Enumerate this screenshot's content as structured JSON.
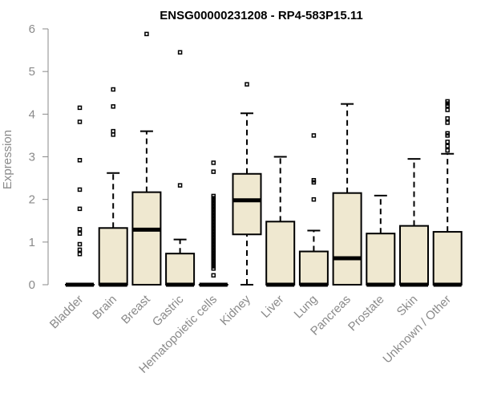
{
  "chart_data": {
    "type": "boxplot",
    "title": "ENSG00000231208 - RP4-583P15.11",
    "ylabel": "Expression",
    "xlabel": "",
    "ylim": [
      0,
      6
    ],
    "yticks": [
      0,
      1,
      2,
      3,
      4,
      5,
      6
    ],
    "grid": false,
    "categories": [
      "Bladder",
      "Brain",
      "Breast",
      "Gastric",
      "Hematopoietic cells",
      "Kidney",
      "Liver",
      "Lung",
      "Pancreas",
      "Prostate",
      "Skin",
      "Unknown / Other"
    ],
    "boxes": [
      {
        "min": 0,
        "q1": 0,
        "median": 0,
        "q3": 0,
        "max": 0,
        "outliers": [
          4.15,
          3.82,
          2.92,
          2.23,
          1.78,
          1.3,
          1.2,
          0.95,
          0.82,
          0.72
        ]
      },
      {
        "min": 0,
        "q1": 0,
        "median": 0,
        "q3": 1.33,
        "max": 2.62,
        "outliers": [
          4.58,
          4.18,
          3.6,
          3.52
        ]
      },
      {
        "min": 0,
        "q1": 0,
        "median": 1.29,
        "q3": 2.17,
        "max": 3.6,
        "outliers": [
          5.88
        ]
      },
      {
        "min": 0,
        "q1": 0,
        "median": 0,
        "q3": 0.73,
        "max": 1.06,
        "outliers": [
          5.45,
          2.33
        ]
      },
      {
        "min": 0,
        "q1": 0,
        "median": 0,
        "q3": 0,
        "max": 0,
        "outliers": [
          2.86,
          2.65,
          2.08,
          2.03,
          1.98,
          1.93,
          1.88,
          1.83,
          1.78,
          1.73,
          1.68,
          1.63,
          1.58,
          1.53,
          1.48,
          1.43,
          1.38,
          1.33,
          1.28,
          1.23,
          1.18,
          1.13,
          1.08,
          1.03,
          0.98,
          0.93,
          0.88,
          0.83,
          0.78,
          0.73,
          0.68,
          0.63,
          0.58,
          0.53,
          0.48,
          0.43,
          0.38,
          0.22
        ]
      },
      {
        "min": 0,
        "q1": 1.18,
        "median": 1.98,
        "q3": 2.6,
        "max": 4.02,
        "outliers": [
          4.7
        ]
      },
      {
        "min": 0,
        "q1": 0,
        "median": 0,
        "q3": 1.48,
        "max": 3.0,
        "outliers": []
      },
      {
        "min": 0,
        "q1": 0,
        "median": 0,
        "q3": 0.78,
        "max": 1.27,
        "outliers": [
          3.5,
          2.45,
          2.4,
          2.0
        ]
      },
      {
        "min": 0,
        "q1": 0,
        "median": 0.62,
        "q3": 2.15,
        "max": 4.24,
        "outliers": []
      },
      {
        "min": 0,
        "q1": 0,
        "median": 0,
        "q3": 1.2,
        "max": 2.09,
        "outliers": []
      },
      {
        "min": 0,
        "q1": 0,
        "median": 0,
        "q3": 1.38,
        "max": 2.95,
        "outliers": []
      },
      {
        "min": 0,
        "q1": 0,
        "median": 0,
        "q3": 1.24,
        "max": 3.07,
        "outliers": [
          4.3,
          4.25,
          4.2,
          4.1,
          3.9,
          3.8,
          3.55,
          3.5,
          3.35,
          3.25,
          3.15
        ]
      }
    ],
    "colors": {
      "box_fill": "#efe8d0",
      "axis": "#8a8a8a",
      "stroke": "#000000"
    }
  }
}
